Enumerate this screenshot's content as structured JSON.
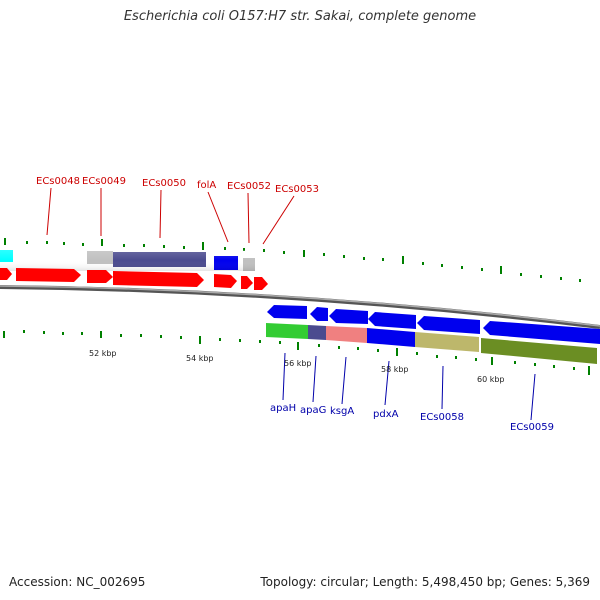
{
  "title": "Escherichia coli O157:H7 str. Sakai, complete genome",
  "footer": {
    "accession": "Accession: NC_002695",
    "topology": "Topology: circular; Length: 5,498,450 bp; Genes: 5,369"
  },
  "colors": {
    "red_gene": "#ff0000",
    "blue_gene": "#0000ee",
    "cyan_gene": "#00ffff",
    "slate_gene": "#4b4b8f",
    "gray_gene": "#c0c0c0",
    "green_gene": "#33cc33",
    "salmon_gene": "#f08080",
    "khaki_gene": "#bdb76b",
    "olive_gene": "#6b8e23",
    "tick": "#008000",
    "top_label": "#cc0000",
    "bottom_label": "#0000aa",
    "backbone": "#808080"
  },
  "upper_labels": [
    "ECs0048",
    "ECs0049",
    "ECs0050",
    "folA",
    "ECs0052",
    "ECs0053"
  ],
  "lower_labels": [
    "apaH",
    "apaG",
    "ksgA",
    "pdxA",
    "ECs0058",
    "ECs0059"
  ],
  "scale_labels": [
    "52 kbp",
    "54 kbp",
    "56 kbp",
    "58 kbp",
    "60 kbp"
  ]
}
